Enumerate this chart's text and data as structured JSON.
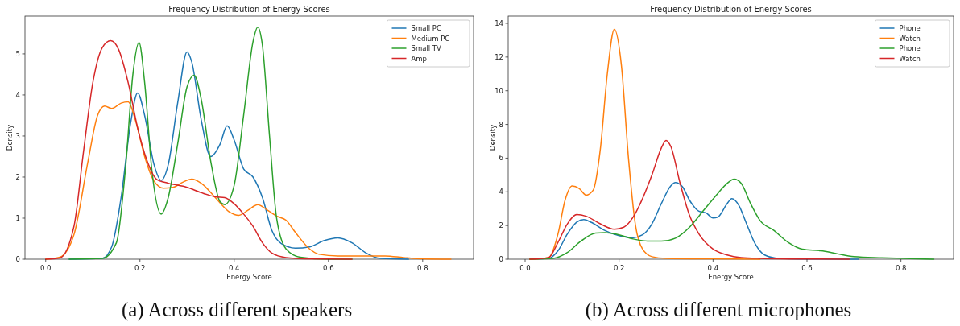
{
  "chart_data": [
    {
      "type": "line",
      "title": "Frequency Distribution of Energy Scores",
      "xlabel": "Energy Score",
      "ylabel": "Density",
      "xlim": [
        -0.044,
        0.908
      ],
      "xticks": [
        {
          "value": 0,
          "label": "0.0"
        },
        0.2,
        0.4,
        0.6,
        0.8
      ],
      "ylim": [
        0,
        5.92
      ],
      "yticks": [
        0,
        1,
        2,
        3,
        4,
        5
      ],
      "grid": false,
      "legend": "top right",
      "annotations": [
        "(a) Across different speakers"
      ],
      "series": [
        {
          "name": "Small PC",
          "color": "#1f77b4",
          "x": [
            0.05,
            0.12,
            0.14,
            0.16,
            0.18,
            0.195,
            0.21,
            0.23,
            0.245,
            0.26,
            0.28,
            0.3,
            0.31,
            0.33,
            0.35,
            0.37,
            0.385,
            0.4,
            0.42,
            0.44,
            0.46,
            0.48,
            0.5,
            0.53,
            0.56,
            0.59,
            0.62,
            0.65,
            0.68,
            0.71,
            0.77
          ],
          "values": [
            0,
            0.02,
            0.3,
            1.5,
            3.3,
            4.05,
            3.5,
            2.3,
            1.92,
            2.3,
            3.8,
            5.05,
            4.8,
            3.4,
            2.5,
            2.8,
            3.25,
            2.9,
            2.2,
            2.0,
            1.5,
            0.7,
            0.38,
            0.27,
            0.3,
            0.45,
            0.52,
            0.4,
            0.15,
            0.02,
            0
          ]
        },
        {
          "name": "Medium PC",
          "color": "#ff7f0e",
          "x": [
            0,
            0.03,
            0.06,
            0.09,
            0.11,
            0.125,
            0.14,
            0.16,
            0.175,
            0.19,
            0.21,
            0.23,
            0.25,
            0.27,
            0.29,
            0.31,
            0.33,
            0.36,
            0.39,
            0.41,
            0.43,
            0.45,
            0.47,
            0.49,
            0.51,
            0.53,
            0.56,
            0.58,
            0.62,
            0.68,
            0.72,
            0.76,
            0.8,
            0.86
          ],
          "values": [
            0,
            0.05,
            0.6,
            2.4,
            3.5,
            3.73,
            3.67,
            3.8,
            3.83,
            3.4,
            2.5,
            1.9,
            1.73,
            1.75,
            1.87,
            1.95,
            1.85,
            1.5,
            1.15,
            1.07,
            1.2,
            1.33,
            1.2,
            1.05,
            0.95,
            0.65,
            0.25,
            0.12,
            0.08,
            0.08,
            0.08,
            0.04,
            0.01,
            0
          ]
        },
        {
          "name": "Small TV",
          "color": "#2ca02c",
          "x": [
            0.05,
            0.12,
            0.15,
            0.17,
            0.185,
            0.198,
            0.21,
            0.225,
            0.245,
            0.26,
            0.28,
            0.3,
            0.315,
            0.33,
            0.35,
            0.37,
            0.38,
            0.4,
            0.42,
            0.44,
            0.45,
            0.46,
            0.475,
            0.49,
            0.51,
            0.54,
            0.6,
            0.65
          ],
          "values": [
            0,
            0.02,
            0.4,
            2.3,
            4.5,
            5.28,
            4.3,
            2.2,
            1.1,
            1.5,
            2.8,
            4.2,
            4.48,
            3.9,
            2.4,
            1.4,
            1.33,
            1.8,
            3.5,
            5.3,
            5.65,
            5.2,
            3.0,
            1.0,
            0.25,
            0.05,
            0,
            0
          ]
        },
        {
          "name": "Amp",
          "color": "#d62728",
          "x": [
            0,
            0.03,
            0.06,
            0.08,
            0.1,
            0.12,
            0.138,
            0.155,
            0.175,
            0.195,
            0.215,
            0.235,
            0.26,
            0.3,
            0.33,
            0.36,
            0.38,
            0.4,
            0.42,
            0.44,
            0.46,
            0.48,
            0.51,
            0.55,
            0.65
          ],
          "values": [
            0,
            0.03,
            0.8,
            2.6,
            4.3,
            5.15,
            5.32,
            5.1,
            4.3,
            3.2,
            2.4,
            1.95,
            1.85,
            1.75,
            1.62,
            1.52,
            1.5,
            1.35,
            1.1,
            0.8,
            0.4,
            0.15,
            0.04,
            0.01,
            0
          ]
        }
      ]
    },
    {
      "type": "line",
      "title": "Frequency Distribution of Energy Scores",
      "xlabel": "Energy Score",
      "ylabel": "Density",
      "xlim": [
        -0.036,
        0.912
      ],
      "xticks": [
        {
          "value": 0,
          "label": "0.0"
        },
        0.2,
        0.4,
        0.6,
        0.8
      ],
      "ylim": [
        0,
        14.43
      ],
      "yticks": [
        0,
        2,
        4,
        6,
        8,
        10,
        12,
        14
      ],
      "grid": false,
      "legend": "top right",
      "annotations": [
        "(b) Across different microphones"
      ],
      "series": [
        {
          "name": "Phone",
          "color": "#1f77b4",
          "x": [
            0.01,
            0.05,
            0.07,
            0.09,
            0.11,
            0.125,
            0.14,
            0.17,
            0.2,
            0.23,
            0.25,
            0.27,
            0.29,
            0.31,
            0.32,
            0.335,
            0.35,
            0.37,
            0.385,
            0.4,
            0.41,
            0.43,
            0.44,
            0.455,
            0.47,
            0.49,
            0.51,
            0.54,
            0.6,
            0.71
          ],
          "values": [
            0,
            0.05,
            0.5,
            1.5,
            2.2,
            2.35,
            2.2,
            1.7,
            1.4,
            1.28,
            1.45,
            2.1,
            3.3,
            4.35,
            4.55,
            4.3,
            3.5,
            2.85,
            2.75,
            2.45,
            2.5,
            3.3,
            3.6,
            3.2,
            2.2,
            0.9,
            0.25,
            0.05,
            0.01,
            0
          ]
        },
        {
          "name": "Watch",
          "color": "#ff7f0e",
          "x": [
            0.01,
            0.05,
            0.07,
            0.085,
            0.1,
            0.115,
            0.13,
            0.145,
            0.16,
            0.175,
            0.19,
            0.205,
            0.22,
            0.235,
            0.25,
            0.27,
            0.3,
            0.4,
            0.5
          ],
          "values": [
            0,
            0.1,
            1.5,
            3.5,
            4.35,
            4.2,
            3.8,
            4.1,
            6.5,
            11.0,
            13.65,
            11.5,
            6.0,
            2.0,
            0.6,
            0.15,
            0.05,
            0.02,
            0
          ]
        },
        {
          "name": "Phone",
          "color": "#2ca02c",
          "x": [
            0.01,
            0.06,
            0.09,
            0.12,
            0.15,
            0.17,
            0.2,
            0.23,
            0.26,
            0.29,
            0.32,
            0.35,
            0.38,
            0.41,
            0.43,
            0.445,
            0.46,
            0.48,
            0.5,
            0.53,
            0.56,
            0.59,
            0.63,
            0.66,
            0.7,
            0.76,
            0.82,
            0.87
          ],
          "values": [
            0,
            0.05,
            0.4,
            1.1,
            1.55,
            1.58,
            1.45,
            1.2,
            1.08,
            1.07,
            1.25,
            1.9,
            2.9,
            3.9,
            4.5,
            4.75,
            4.5,
            3.3,
            2.3,
            1.7,
            1.0,
            0.6,
            0.5,
            0.35,
            0.15,
            0.08,
            0.03,
            0
          ]
        },
        {
          "name": "Watch",
          "color": "#d62728",
          "x": [
            0.01,
            0.05,
            0.07,
            0.09,
            0.11,
            0.13,
            0.16,
            0.19,
            0.21,
            0.23,
            0.25,
            0.27,
            0.29,
            0.3,
            0.31,
            0.33,
            0.35,
            0.37,
            0.4,
            0.43,
            0.46,
            0.5,
            0.6,
            0.69
          ],
          "values": [
            0,
            0.1,
            1.0,
            2.1,
            2.65,
            2.55,
            2.1,
            1.78,
            1.9,
            2.5,
            3.6,
            5.0,
            6.6,
            7.05,
            6.7,
            4.5,
            2.6,
            1.5,
            0.6,
            0.25,
            0.1,
            0.05,
            0.01,
            0
          ]
        }
      ]
    }
  ]
}
